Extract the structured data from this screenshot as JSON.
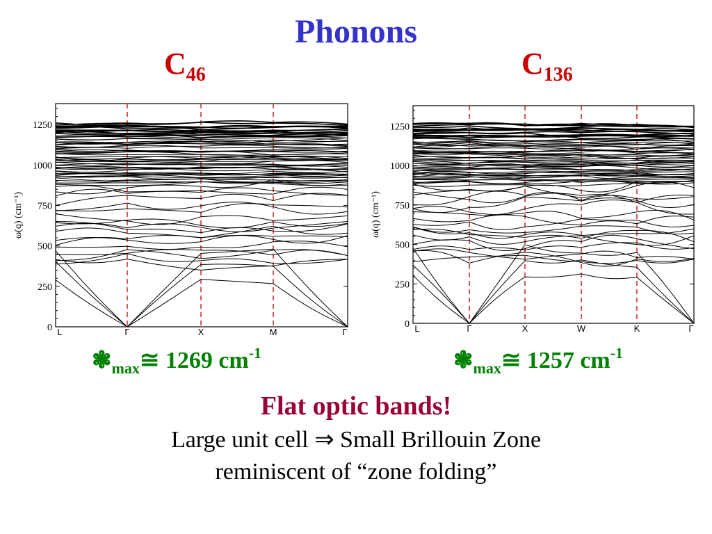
{
  "slide": {
    "title": "Phonons",
    "flat_bands": "Flat optic bands!",
    "line1": "Large unit cell ⇒  Small Brillouin Zone",
    "line2": "reminiscent of  “zone folding”"
  },
  "panels": [
    {
      "label_base": "C",
      "label_sub": "46",
      "freq_symbol": "❃",
      "freq_sub": "max",
      "freq_value": "≅ 1269 cm",
      "freq_exp": "-1"
    },
    {
      "label_base": "C",
      "label_sub": "136",
      "freq_symbol": "❃",
      "freq_sub": "max",
      "freq_value": "≅ 1257 cm",
      "freq_exp": "-1"
    }
  ],
  "chart_data": [
    {
      "type": "line",
      "ylabel": "ω(q) (cm⁻¹)",
      "ylim": [
        0,
        1380
      ],
      "yticks": [
        0,
        250,
        500,
        750,
        1000,
        1250
      ],
      "xticks": [
        "L",
        "Γ",
        "X",
        "M",
        "Γ"
      ],
      "vertical_dashed_at": [
        "Γ",
        "X",
        "M"
      ],
      "colors": {
        "bands": "#000000",
        "dashed": "#cc2222"
      },
      "bands": [
        [
          0,
          0
        ],
        [
          2,
          25
        ],
        [
          3,
          30
        ],
        [
          1,
          35
        ],
        [
          4,
          60
        ],
        [
          2,
          65
        ],
        [
          6,
          65
        ],
        [
          380,
          120
        ],
        [
          180,
          80
        ],
        [
          90,
          60
        ],
        [
          80,
          30
        ],
        [
          310,
          150
        ],
        [
          250,
          120
        ],
        [
          200,
          90
        ],
        [
          160,
          60
        ]
      ]
    },
    {
      "type": "line",
      "ylabel": "ω(q) (cm⁻¹)",
      "ylim": [
        0,
        1380
      ],
      "yticks": [
        0,
        250,
        500,
        750,
        1000,
        1250
      ],
      "xticks": [
        "L",
        "Γ",
        "X",
        "W",
        "K",
        "Γ"
      ],
      "vertical_dashed_at": [
        "Γ",
        "X",
        "W",
        "K"
      ],
      "colors": {
        "bands": "#000000",
        "dashed": "#cc2222"
      },
      "bands": []
    }
  ]
}
